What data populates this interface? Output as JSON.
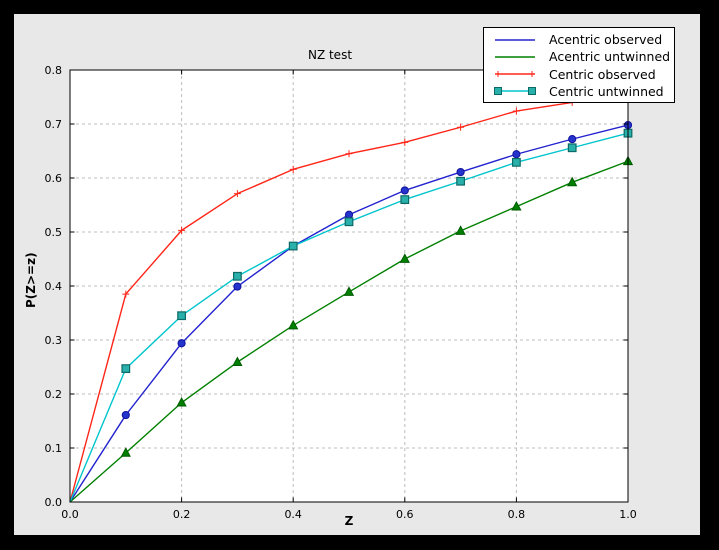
{
  "window": {
    "background": "#000000",
    "figure_background": "#e8e8e8",
    "plot_background": "#ffffff",
    "grid_color": "#bdbdbd",
    "axis_color": "#000000"
  },
  "chart_data": {
    "type": "line",
    "title": "NZ test",
    "xlabel": "Z",
    "ylabel": "P(Z>=z)",
    "xlim": [
      0.0,
      1.0
    ],
    "ylim": [
      0.0,
      0.8
    ],
    "grid": true,
    "legend_position": "upper right",
    "x_ticks": [
      0.0,
      0.2,
      0.4,
      0.6,
      0.8,
      1.0
    ],
    "x_tick_labels": [
      "0.0",
      "0.2",
      "0.4",
      "0.6",
      "0.8",
      "1.0"
    ],
    "y_ticks": [
      0.0,
      0.1,
      0.2,
      0.3,
      0.4,
      0.5,
      0.6,
      0.7,
      0.8
    ],
    "y_tick_labels": [
      "0.0",
      "0.1",
      "0.2",
      "0.3",
      "0.4",
      "0.5",
      "0.6",
      "0.7",
      "0.8"
    ],
    "x": [
      0.0,
      0.1,
      0.2,
      0.3,
      0.4,
      0.5,
      0.6,
      0.7,
      0.8,
      0.9,
      1.0
    ],
    "series": [
      {
        "name": "Acentric observed",
        "color": "#2323cf",
        "marker": "circle",
        "marker_fill": "#2333cc",
        "marker_edge": "#12129b",
        "legend_marker": "none",
        "values": [
          0.0,
          0.161,
          0.294,
          0.399,
          0.474,
          0.532,
          0.577,
          0.611,
          0.644,
          0.672,
          0.698
        ]
      },
      {
        "name": "Acentric untwinned",
        "color": "#008000",
        "marker": "triangle",
        "marker_fill": "#008000",
        "marker_edge": "#005a00",
        "legend_marker": "none",
        "values": [
          0.0,
          0.091,
          0.184,
          0.259,
          0.327,
          0.389,
          0.45,
          0.502,
          0.547,
          0.592,
          0.631
        ]
      },
      {
        "name": "Centric observed",
        "color": "#ff2619",
        "marker": "plus",
        "marker_fill": "#ff2619",
        "marker_edge": "#ff2619",
        "legend_marker": "plus",
        "values": [
          0.0,
          0.385,
          0.503,
          0.571,
          0.616,
          0.645,
          0.666,
          0.694,
          0.724,
          0.74,
          0.755
        ]
      },
      {
        "name": "Centric untwinned",
        "color": "#00c5cc",
        "marker": "square",
        "marker_fill": "#2ab0ab",
        "marker_edge": "#0c6a66",
        "legend_marker": "square",
        "values": [
          0.0,
          0.247,
          0.345,
          0.418,
          0.474,
          0.519,
          0.56,
          0.594,
          0.629,
          0.656,
          0.683
        ]
      }
    ]
  }
}
